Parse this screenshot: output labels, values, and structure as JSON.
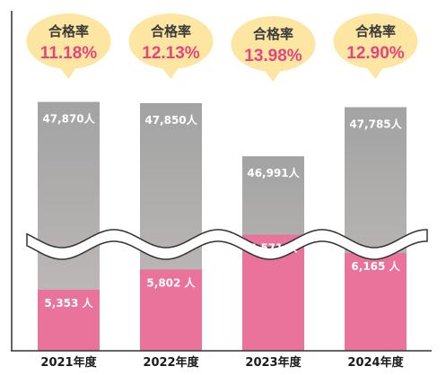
{
  "chart_data": {
    "type": "bar",
    "categories": [
      "2021年度",
      "2022年度",
      "2023年度",
      "2024年度"
    ],
    "series": [
      {
        "values": [
          47870,
          47850,
          46991,
          47785
        ],
        "labels": [
          "47,870人",
          "47,850人",
          "46,991人",
          "47,785人"
        ]
      },
      {
        "values": [
          5353,
          5802,
          6571,
          6165
        ],
        "labels": [
          "5,353 人",
          "5,802 人",
          "6,571 人",
          "6,165 人"
        ]
      }
    ],
    "callouts": {
      "label": "合格率",
      "values": [
        "11.18%",
        "12.13%",
        "13.98%",
        "12.90%"
      ]
    },
    "axis_break": true,
    "colors": {
      "total_top": "#a3a3a3",
      "total_bottom": "#c3bebc",
      "passed": "#e9739a",
      "rate": "#e5457b",
      "bubble": "#fce6a2"
    }
  }
}
